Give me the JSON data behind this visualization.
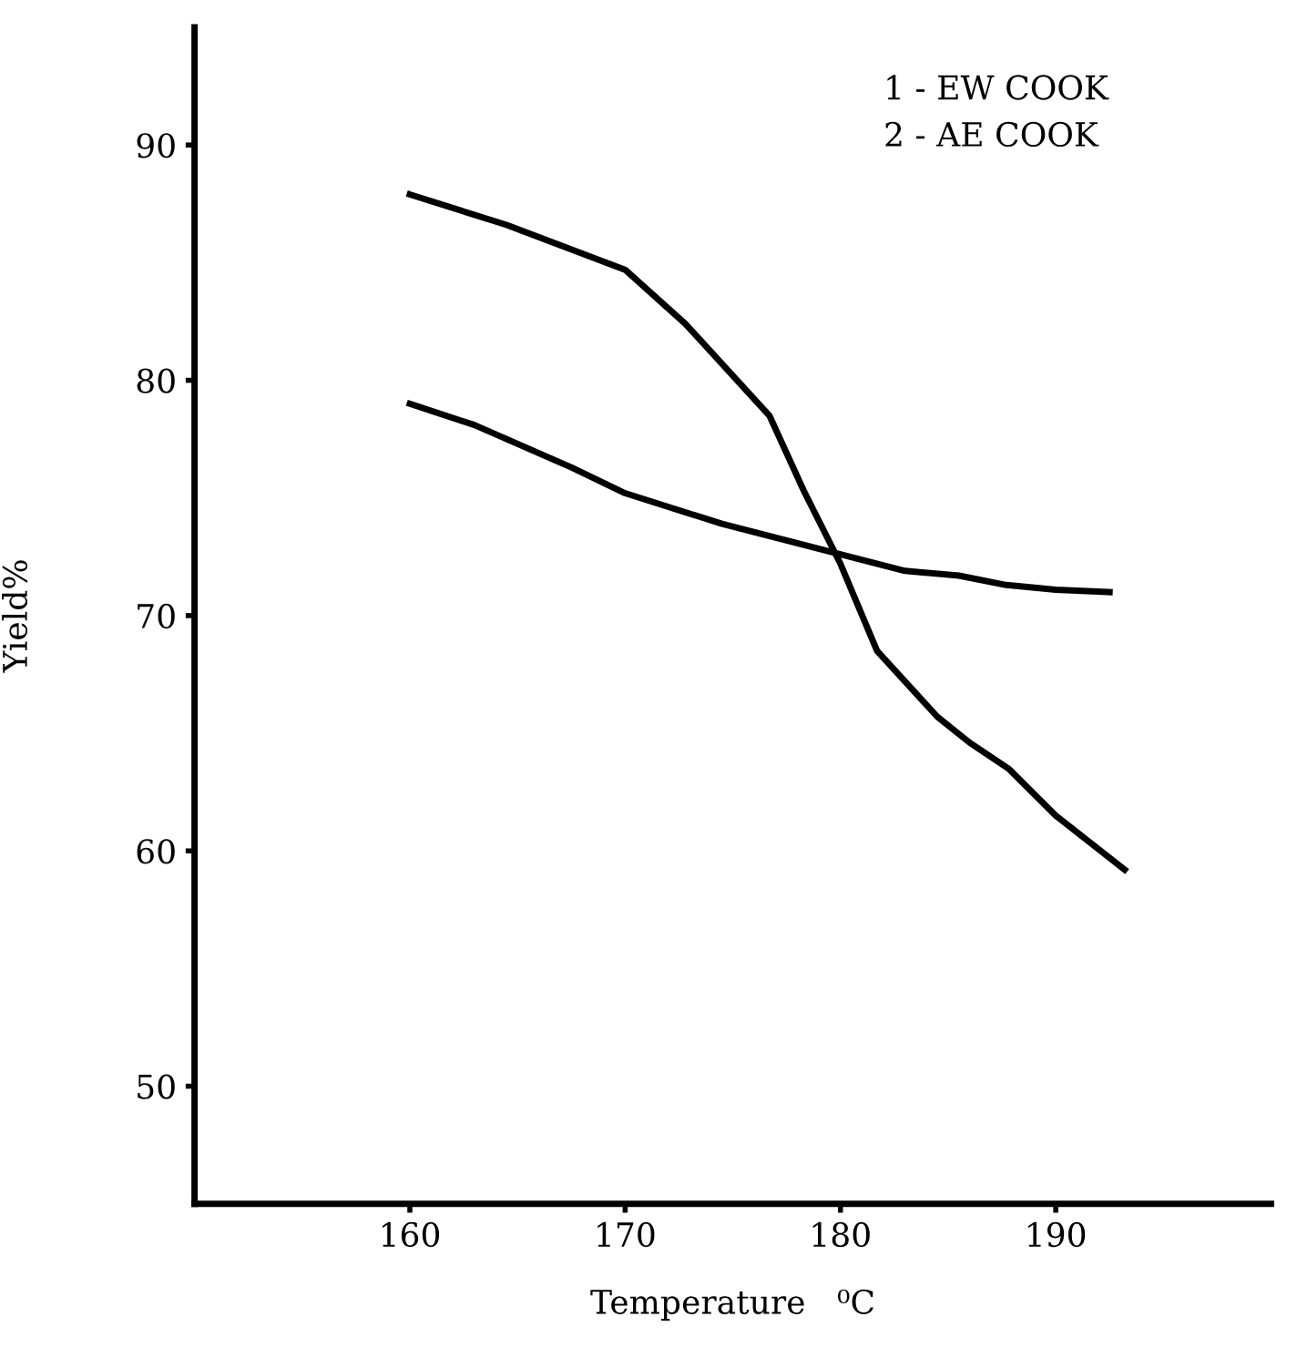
{
  "chart_data": {
    "type": "line",
    "xlabel": "Temperature   ⁰C",
    "ylabel": "Yield%",
    "xlim": [
      150,
      200
    ],
    "ylim": [
      45,
      95
    ],
    "xticks": [
      160,
      170,
      180,
      190
    ],
    "yticks": [
      50,
      60,
      70,
      80,
      90
    ],
    "grid": false,
    "marker": "none",
    "line_style": "solid",
    "annotations": [
      "1 - EW COOK\n2 - AE COOK"
    ],
    "series": [
      {
        "color": "#000000",
        "x": [
          160,
          164.5,
          170,
          172.8,
          175.5,
          176.7,
          178.3,
          180,
          181.7,
          184.5,
          186,
          187.8,
          190,
          193.2
        ],
        "values": [
          87.9,
          86.6,
          84.7,
          82.4,
          79.7,
          78.5,
          75.3,
          72.2,
          68.5,
          65.7,
          64.6,
          63.5,
          61.5,
          59.2
        ]
      },
      {
        "color": "#000000",
        "x": [
          160,
          163,
          167.5,
          170,
          174.5,
          180,
          183,
          185.5,
          187.7,
          190,
          192.5
        ],
        "values": [
          79.0,
          78.1,
          76.3,
          75.2,
          73.9,
          72.6,
          71.9,
          71.7,
          71.3,
          71.1,
          71.0
        ]
      }
    ]
  }
}
